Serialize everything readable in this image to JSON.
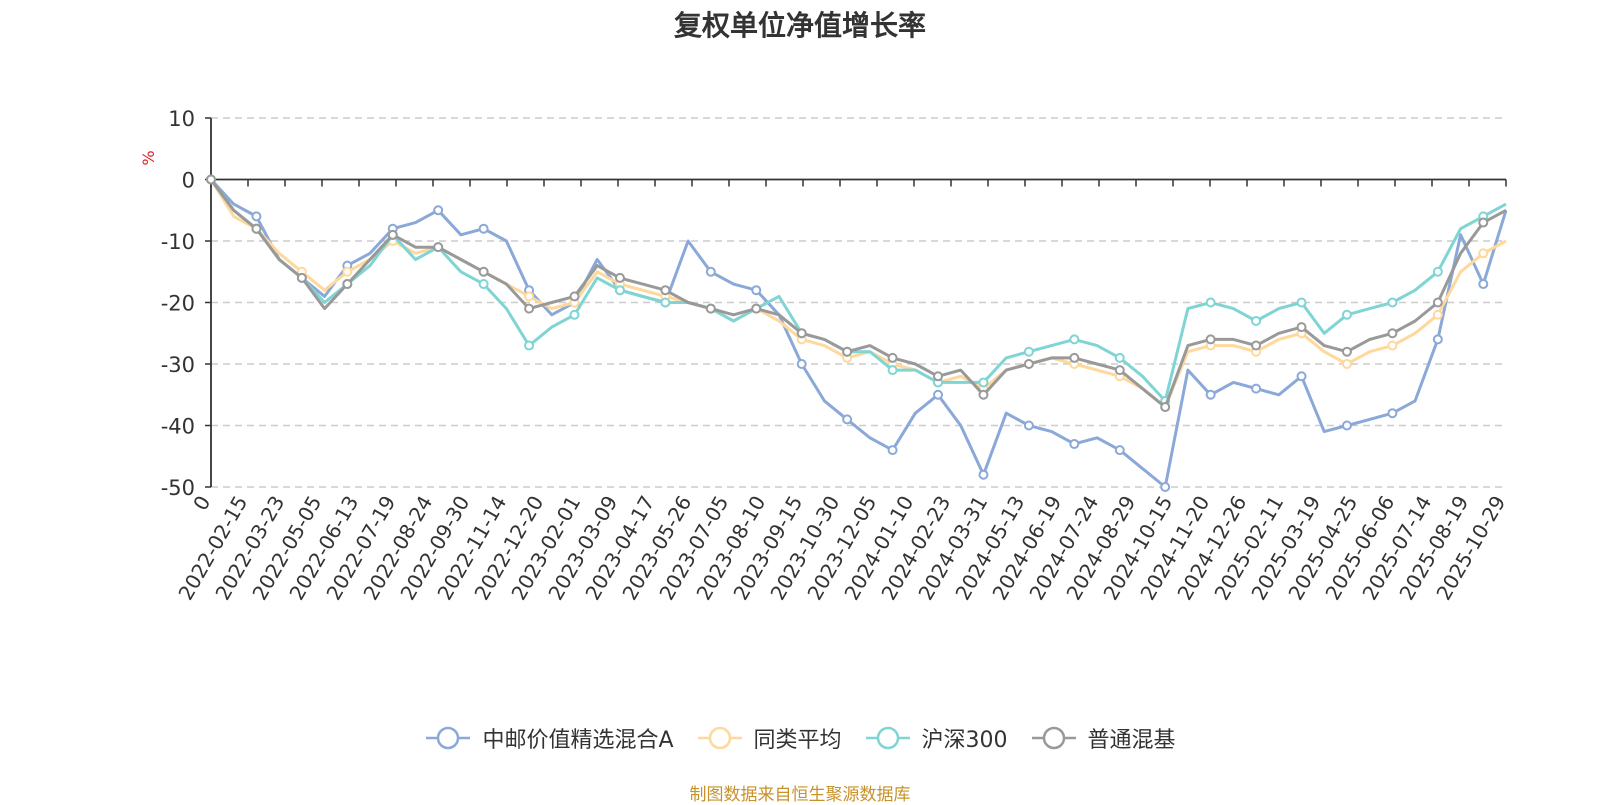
{
  "chart_data": {
    "type": "line",
    "title": "复权单位净值增长率",
    "ylabel": "%",
    "ylim": [
      -50,
      10
    ],
    "yticks": [
      10,
      0,
      -10,
      -20,
      -30,
      -40,
      -50
    ],
    "grid": true,
    "legend_position": "bottom",
    "x_start_label": "0",
    "x_labels": [
      "2022-02-15",
      "2022-03-23",
      "2022-05-05",
      "2022-06-13",
      "2022-07-19",
      "2022-08-24",
      "2022-09-30",
      "2022-11-14",
      "2022-12-20",
      "2023-02-01",
      "2023-03-09",
      "2023-04-17",
      "2023-05-26",
      "2023-07-05",
      "2023-08-10",
      "2023-09-15",
      "2023-10-30",
      "2023-12-05",
      "2024-01-10",
      "2024-02-23",
      "2024-03-31",
      "2024-05-13",
      "2024-06-19",
      "2024-07-24",
      "2024-08-29",
      "2024-10-15",
      "2024-11-20",
      "2024-12-26",
      "2025-02-11",
      "2025-03-19",
      "2025-04-25",
      "2025-06-06",
      "2025-07-14",
      "2025-08-19",
      "2025-10-29"
    ],
    "series": [
      {
        "name": "中邮价值精选混合A",
        "color": "#8aa8d8",
        "values": [
          0,
          -4,
          -6,
          -13,
          -16,
          -19,
          -14,
          -12,
          -8,
          -7,
          -5,
          -9,
          -8,
          -10,
          -18,
          -22,
          -20,
          -13,
          -18,
          -19,
          -20,
          -10,
          -15,
          -17,
          -18,
          -22,
          -30,
          -36,
          -39,
          -42,
          -44,
          -38,
          -35,
          -40,
          -48,
          -38,
          -40,
          -41,
          -43,
          -42,
          -44,
          -47,
          -50,
          -31,
          -35,
          -33,
          -34,
          -35,
          -32,
          -41,
          -40,
          -39,
          -38,
          -36,
          -26,
          -9,
          -17,
          -5
        ]
      },
      {
        "name": "同类平均",
        "color": "#ffd89c",
        "values": [
          0,
          -6,
          -8,
          -12,
          -15,
          -18,
          -15,
          -13,
          -10,
          -12,
          -11,
          -13,
          -15,
          -17,
          -19,
          -21,
          -20,
          -15,
          -17,
          -18,
          -19,
          -20,
          -21,
          -23,
          -21,
          -23,
          -26,
          -27,
          -29,
          -28,
          -30,
          -31,
          -33,
          -32,
          -34,
          -31,
          -30,
          -29,
          -30,
          -31,
          -32,
          -34,
          -37,
          -28,
          -27,
          -27,
          -28,
          -26,
          -25,
          -28,
          -30,
          -28,
          -27,
          -25,
          -22,
          -15,
          -12,
          -10
        ]
      },
      {
        "name": "沪深300",
        "color": "#7fd4d4",
        "values": [
          0,
          -5,
          -8,
          -13,
          -16,
          -20,
          -17,
          -14,
          -9,
          -13,
          -11,
          -15,
          -17,
          -21,
          -27,
          -24,
          -22,
          -16,
          -18,
          -19,
          -20,
          -20,
          -21,
          -23,
          -21,
          -19,
          -25,
          -26,
          -28,
          -28,
          -31,
          -31,
          -33,
          -33,
          -33,
          -29,
          -28,
          -27,
          -26,
          -27,
          -29,
          -32,
          -36,
          -21,
          -20,
          -21,
          -23,
          -21,
          -20,
          -25,
          -22,
          -21,
          -20,
          -18,
          -15,
          -8,
          -6,
          -4
        ]
      },
      {
        "name": "普通混基",
        "color": "#999999",
        "values": [
          0,
          -5,
          -8,
          -13,
          -16,
          -21,
          -17,
          -13,
          -9,
          -11,
          -11,
          -13,
          -15,
          -17,
          -21,
          -20,
          -19,
          -14,
          -16,
          -17,
          -18,
          -20,
          -21,
          -22,
          -21,
          -22,
          -25,
          -26,
          -28,
          -27,
          -29,
          -30,
          -32,
          -31,
          -35,
          -31,
          -30,
          -29,
          -29,
          -30,
          -31,
          -34,
          -37,
          -27,
          -26,
          -26,
          -27,
          -25,
          -24,
          -27,
          -28,
          -26,
          -25,
          -23,
          -20,
          -12,
          -7,
          -5
        ]
      }
    ]
  },
  "source_text": "制图数据来自恒生聚源数据库"
}
